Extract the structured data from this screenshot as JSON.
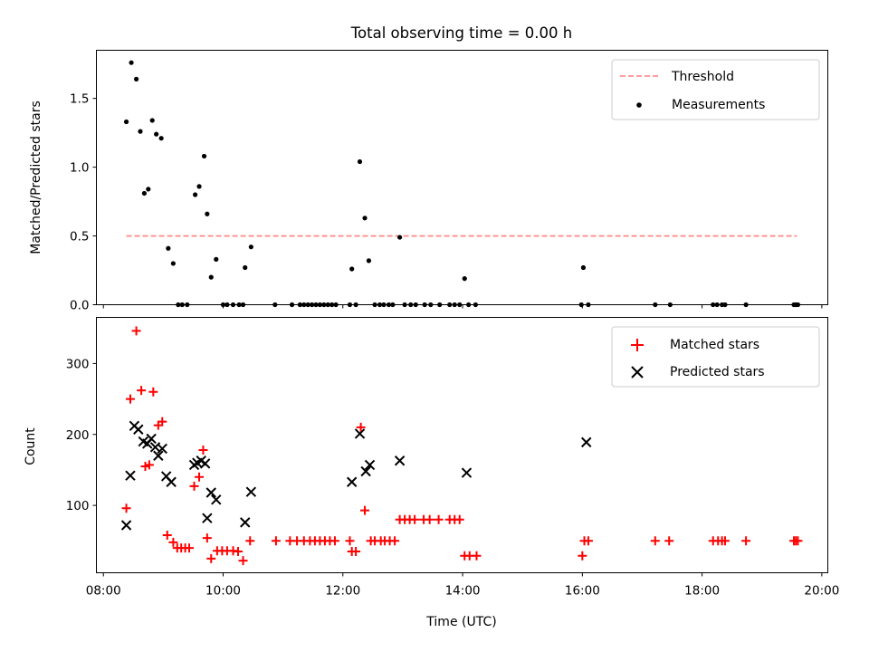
{
  "chart_data": [
    {
      "type": "scatter",
      "title": "Total observing time = 0.00 h",
      "xlabel": "",
      "ylabel": "Matched/Predicted stars",
      "ylim": [
        0,
        1.85
      ],
      "xlim": [
        "07:53",
        "20:06"
      ],
      "yticks": [
        "0.0",
        "0.5",
        "1.0",
        "1.5"
      ],
      "legend_position": "top-right",
      "threshold": {
        "name": "Threshold",
        "y": 0.5,
        "x": [
          "08:23",
          "19:35"
        ],
        "color": "#ff7f7f",
        "style": "dashed"
      },
      "series": [
        {
          "name": "Measurements",
          "color": "#000000",
          "marker": "dot",
          "points": [
            [
              "08:23",
              1.33
            ],
            [
              "08:28",
              1.76
            ],
            [
              "08:33",
              1.64
            ],
            [
              "08:37",
              1.26
            ],
            [
              "08:41",
              0.81
            ],
            [
              "08:45",
              0.84
            ],
            [
              "08:49",
              1.34
            ],
            [
              "08:53",
              1.24
            ],
            [
              "08:58",
              1.21
            ],
            [
              "09:05",
              0.41
            ],
            [
              "09:10",
              0.3
            ],
            [
              "09:15",
              0.0
            ],
            [
              "09:19",
              0.0
            ],
            [
              "09:24",
              0.0
            ],
            [
              "09:32",
              0.8
            ],
            [
              "09:36",
              0.86
            ],
            [
              "09:41",
              1.08
            ],
            [
              "09:44",
              0.66
            ],
            [
              "09:48",
              0.2
            ],
            [
              "09:53",
              0.33
            ],
            [
              "10:00",
              0.0
            ],
            [
              "10:04",
              0.0
            ],
            [
              "10:10",
              0.0
            ],
            [
              "10:16",
              0.0
            ],
            [
              "10:20",
              0.0
            ],
            [
              "10:22",
              0.27
            ],
            [
              "10:28",
              0.42
            ],
            [
              "10:52",
              0.0
            ],
            [
              "11:09",
              0.0
            ],
            [
              "11:17",
              0.0
            ],
            [
              "11:21",
              0.0
            ],
            [
              "11:25",
              0.0
            ],
            [
              "11:29",
              0.0
            ],
            [
              "11:33",
              0.0
            ],
            [
              "11:37",
              0.0
            ],
            [
              "11:41",
              0.0
            ],
            [
              "11:45",
              0.0
            ],
            [
              "11:49",
              0.0
            ],
            [
              "11:53",
              0.0
            ],
            [
              "12:07",
              0.0
            ],
            [
              "12:09",
              0.26
            ],
            [
              "12:13",
              0.0
            ],
            [
              "12:17",
              1.04
            ],
            [
              "12:22",
              0.63
            ],
            [
              "12:26",
              0.32
            ],
            [
              "12:32",
              0.0
            ],
            [
              "12:37",
              0.0
            ],
            [
              "12:41",
              0.0
            ],
            [
              "12:46",
              0.0
            ],
            [
              "12:50",
              0.0
            ],
            [
              "12:57",
              0.49
            ],
            [
              "13:02",
              0.0
            ],
            [
              "13:08",
              0.0
            ],
            [
              "13:13",
              0.0
            ],
            [
              "13:22",
              0.0
            ],
            [
              "13:28",
              0.0
            ],
            [
              "13:37",
              0.0
            ],
            [
              "13:47",
              0.0
            ],
            [
              "13:52",
              0.0
            ],
            [
              "13:57",
              0.0
            ],
            [
              "14:02",
              0.19
            ],
            [
              "14:06",
              0.0
            ],
            [
              "14:13",
              0.0
            ],
            [
              "15:59",
              0.0
            ],
            [
              "16:01",
              0.27
            ],
            [
              "16:06",
              0.0
            ],
            [
              "17:13",
              0.0
            ],
            [
              "17:28",
              0.0
            ],
            [
              "18:11",
              0.0
            ],
            [
              "18:15",
              0.0
            ],
            [
              "18:20",
              0.0
            ],
            [
              "18:23",
              0.0
            ],
            [
              "18:44",
              0.0
            ],
            [
              "19:32",
              0.0
            ],
            [
              "19:34",
              0.0
            ],
            [
              "19:36",
              0.0
            ]
          ]
        }
      ]
    },
    {
      "type": "scatter",
      "title": "",
      "xlabel": "Time (UTC)",
      "ylabel": "Count",
      "ylim": [
        5,
        365
      ],
      "xlim": [
        "07:53",
        "20:06"
      ],
      "xticks": [
        "08:00",
        "10:00",
        "12:00",
        "14:00",
        "16:00",
        "18:00",
        "20:00"
      ],
      "yticks": [
        "100",
        "200",
        "300"
      ],
      "legend_position": "top-right",
      "series": [
        {
          "name": "Matched stars",
          "color": "#ff0000",
          "marker": "plus",
          "points": [
            [
              "08:23",
              96
            ],
            [
              "08:27",
              250
            ],
            [
              "08:33",
              346
            ],
            [
              "08:38",
              262
            ],
            [
              "08:42",
              155
            ],
            [
              "08:46",
              157
            ],
            [
              "08:50",
              260
            ],
            [
              "08:55",
              213
            ],
            [
              "08:59",
              218
            ],
            [
              "09:04",
              58
            ],
            [
              "09:10",
              48
            ],
            [
              "09:14",
              40
            ],
            [
              "09:18",
              40
            ],
            [
              "09:22",
              40
            ],
            [
              "09:26",
              40
            ],
            [
              "09:31",
              127
            ],
            [
              "09:36",
              140
            ],
            [
              "09:40",
              178
            ],
            [
              "09:44",
              54
            ],
            [
              "09:48",
              25
            ],
            [
              "09:54",
              36
            ],
            [
              "09:59",
              36
            ],
            [
              "10:04",
              36
            ],
            [
              "10:10",
              36
            ],
            [
              "10:15",
              35
            ],
            [
              "10:20",
              22
            ],
            [
              "10:27",
              50
            ],
            [
              "10:53",
              50
            ],
            [
              "11:07",
              50
            ],
            [
              "11:14",
              50
            ],
            [
              "11:21",
              50
            ],
            [
              "11:27",
              50
            ],
            [
              "11:32",
              50
            ],
            [
              "11:37",
              50
            ],
            [
              "11:42",
              50
            ],
            [
              "11:47",
              50
            ],
            [
              "11:52",
              50
            ],
            [
              "12:07",
              50
            ],
            [
              "12:09",
              35
            ],
            [
              "12:13",
              35
            ],
            [
              "12:18",
              210
            ],
            [
              "12:22",
              93
            ],
            [
              "12:28",
              50
            ],
            [
              "12:32",
              50
            ],
            [
              "12:38",
              50
            ],
            [
              "12:42",
              50
            ],
            [
              "12:47",
              50
            ],
            [
              "12:52",
              50
            ],
            [
              "12:57",
              80
            ],
            [
              "13:02",
              80
            ],
            [
              "13:07",
              80
            ],
            [
              "13:12",
              80
            ],
            [
              "13:21",
              80
            ],
            [
              "13:27",
              80
            ],
            [
              "13:36",
              80
            ],
            [
              "13:47",
              80
            ],
            [
              "13:52",
              80
            ],
            [
              "13:57",
              80
            ],
            [
              "14:02",
              29
            ],
            [
              "14:07",
              29
            ],
            [
              "14:14",
              29
            ],
            [
              "16:00",
              29
            ],
            [
              "16:02",
              50
            ],
            [
              "16:06",
              50
            ],
            [
              "17:13",
              50
            ],
            [
              "17:27",
              50
            ],
            [
              "18:11",
              50
            ],
            [
              "18:16",
              50
            ],
            [
              "18:20",
              50
            ],
            [
              "18:23",
              50
            ],
            [
              "18:44",
              50
            ],
            [
              "19:32",
              50
            ],
            [
              "19:34",
              50
            ],
            [
              "19:36",
              50
            ]
          ]
        },
        {
          "name": "Predicted stars",
          "color": "#000000",
          "marker": "x",
          "points": [
            [
              "08:23",
              72
            ],
            [
              "08:27",
              142
            ],
            [
              "08:31",
              212
            ],
            [
              "08:35",
              207
            ],
            [
              "08:40",
              190
            ],
            [
              "08:44",
              187
            ],
            [
              "08:48",
              194
            ],
            [
              "08:52",
              182
            ],
            [
              "08:55",
              170
            ],
            [
              "08:59",
              180
            ],
            [
              "09:03",
              141
            ],
            [
              "09:08",
              133
            ],
            [
              "09:31",
              157
            ],
            [
              "09:34",
              160
            ],
            [
              "09:38",
              163
            ],
            [
              "09:42",
              159
            ],
            [
              "09:44",
              82
            ],
            [
              "09:48",
              118
            ],
            [
              "09:53",
              108
            ],
            [
              "10:22",
              76
            ],
            [
              "10:28",
              119
            ],
            [
              "12:09",
              133
            ],
            [
              "12:17",
              201
            ],
            [
              "12:23",
              148
            ],
            [
              "12:27",
              157
            ],
            [
              "12:57",
              163
            ],
            [
              "14:04",
              146
            ],
            [
              "16:04",
              189
            ]
          ]
        }
      ]
    }
  ]
}
